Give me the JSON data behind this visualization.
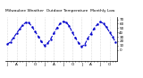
{
  "title": "Milwaukee Weather  Outdoor Temperature  Monthly Low",
  "values": [
    13,
    18,
    28,
    38,
    48,
    57,
    63,
    62,
    53,
    42,
    31,
    19,
    10,
    15,
    25,
    38,
    50,
    60,
    65,
    63,
    55,
    40,
    28,
    16,
    8,
    12,
    27,
    37,
    49,
    58,
    64,
    61,
    52,
    41,
    30,
    17
  ],
  "ylim": [
    -25,
    75
  ],
  "yticks": [
    0,
    10,
    20,
    30,
    40,
    50,
    60,
    70
  ],
  "line_color": "#0000cc",
  "marker_size": 1.5,
  "line_width": 0.8,
  "line_style": "--",
  "bg_color": "#ffffff",
  "grid_color": "#bbbbbb",
  "title_fontsize": 3.2,
  "tick_fontsize": 3.0,
  "figwidth": 1.6,
  "figheight": 0.87,
  "dpi": 100
}
